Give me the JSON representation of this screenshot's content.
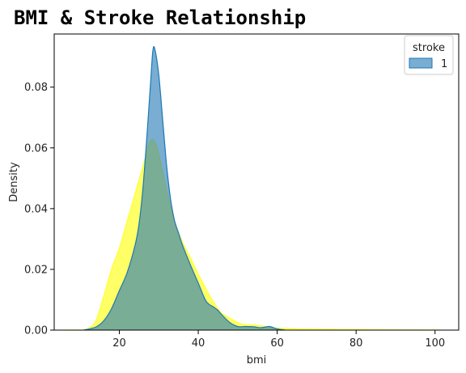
{
  "chart_data": {
    "type": "area",
    "title": "BMI & Stroke Relationship",
    "xlabel": "bmi",
    "ylabel": "Density",
    "xlim": [
      3.5,
      106
    ],
    "ylim": [
      0,
      0.0975
    ],
    "xticks": [
      20,
      40,
      60,
      80,
      100
    ],
    "yticks": [
      0.0,
      0.02,
      0.04,
      0.06,
      0.08
    ],
    "ytick_labels": [
      "0.00",
      "0.02",
      "0.04",
      "0.06",
      "0.08"
    ],
    "grid": false,
    "legend": {
      "title": "stroke",
      "position": "top-right",
      "entries": [
        "1"
      ]
    },
    "series": [
      {
        "color": "#ffff00",
        "opacity": 0.6,
        "x": [
          6,
          10,
          12,
          14,
          16,
          18,
          20,
          22,
          24,
          26,
          27,
          28,
          29,
          30,
          31,
          32,
          34,
          36,
          38,
          40,
          42,
          44,
          46,
          48,
          50,
          52,
          54,
          56,
          58,
          60,
          65,
          70,
          80,
          90,
          100,
          101
        ],
        "y": [
          0.0,
          0.0,
          0.0005,
          0.003,
          0.011,
          0.02,
          0.027,
          0.036,
          0.045,
          0.054,
          0.059,
          0.0625,
          0.062,
          0.058,
          0.052,
          0.046,
          0.036,
          0.029,
          0.024,
          0.0185,
          0.0135,
          0.009,
          0.0055,
          0.004,
          0.0025,
          0.0018,
          0.0017,
          0.0014,
          0.001,
          0.0007,
          0.0004,
          0.0003,
          0.0002,
          0.0001,
          5e-05,
          0.0
        ]
      },
      {
        "name": "1",
        "color": "#1f77b4",
        "opacity": 0.6,
        "x": [
          11,
          14,
          16,
          18,
          20,
          22,
          24,
          25,
          26,
          27,
          28,
          28.5,
          29,
          30,
          31,
          32,
          33,
          34,
          35,
          36,
          38,
          40,
          42,
          44,
          45,
          46,
          48,
          50,
          52,
          54,
          56,
          58,
          60,
          62
        ],
        "y": [
          0.0,
          0.001,
          0.003,
          0.007,
          0.013,
          0.019,
          0.028,
          0.035,
          0.047,
          0.064,
          0.083,
          0.092,
          0.0925,
          0.084,
          0.069,
          0.054,
          0.043,
          0.036,
          0.032,
          0.028,
          0.0215,
          0.0155,
          0.0095,
          0.0075,
          0.0065,
          0.005,
          0.0025,
          0.0012,
          0.0012,
          0.0011,
          0.0008,
          0.0012,
          0.0004,
          0.0
        ]
      }
    ]
  }
}
